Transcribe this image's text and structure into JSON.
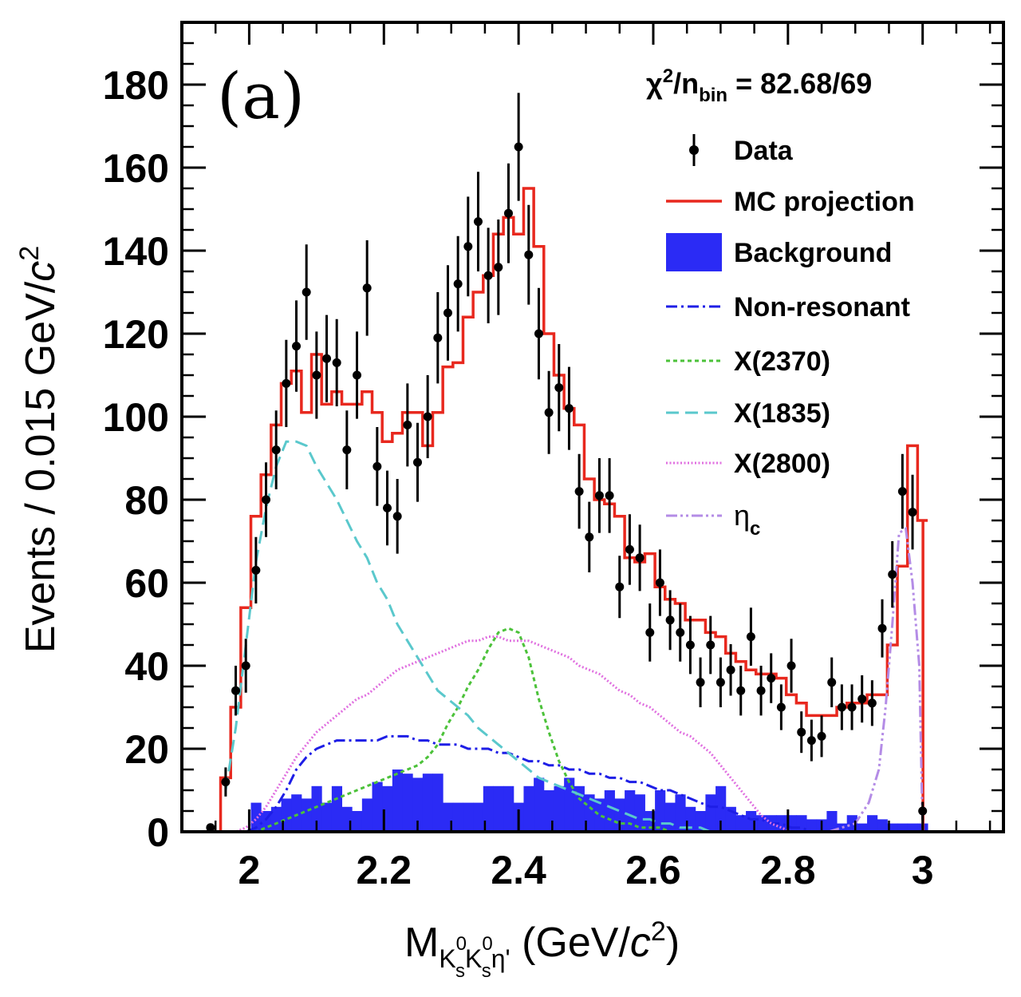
{
  "chart_data": {
    "type": "histogram",
    "panel_label": "(a)",
    "chi2": {
      "prefix": "χ",
      "sup": "2",
      "mid": "/n",
      "sub": "bin",
      "value": " = 82.68/69"
    },
    "xlabel": {
      "main": "M",
      "sub1": "K",
      "sup1": "0",
      "subsub1": "s",
      "sub2": "K",
      "sup2": "0",
      "subsub2": "s",
      "sub3": "η'",
      "unit": " (GeV/",
      "unit_italic": "c",
      "unit_sup": "2",
      "unit_close": ")"
    },
    "ylabel": {
      "main": "Events / 0.015 GeV/",
      "italic": "c",
      "sup": "2"
    },
    "xlim": [
      1.9,
      3.12
    ],
    "ylim": [
      0,
      195
    ],
    "xticks": [
      {
        "value": 2.0,
        "label": "2"
      },
      {
        "value": 2.2,
        "label": "2.2"
      },
      {
        "value": 2.4,
        "label": "2.4"
      },
      {
        "value": 2.6,
        "label": "2.6"
      },
      {
        "value": 2.8,
        "label": "2.8"
      },
      {
        "value": 3.0,
        "label": "3"
      }
    ],
    "yticks": [
      {
        "value": 0,
        "label": "0"
      },
      {
        "value": 20,
        "label": "20"
      },
      {
        "value": 40,
        "label": "40"
      },
      {
        "value": 60,
        "label": "60"
      },
      {
        "value": 80,
        "label": "80"
      },
      {
        "value": 100,
        "label": "100"
      },
      {
        "value": 120,
        "label": "120"
      },
      {
        "value": 140,
        "label": "140"
      },
      {
        "value": 160,
        "label": "160"
      },
      {
        "value": 180,
        "label": "180"
      }
    ],
    "bin_start": 1.9575,
    "bin_width": 0.015,
    "data": {
      "x": [
        1.9425,
        1.965,
        1.98,
        1.995,
        2.01,
        2.025,
        2.04,
        2.055,
        2.07,
        2.085,
        2.1,
        2.115,
        2.13,
        2.145,
        2.16,
        2.175,
        2.19,
        2.205,
        2.22,
        2.235,
        2.25,
        2.265,
        2.28,
        2.295,
        2.31,
        2.325,
        2.34,
        2.355,
        2.37,
        2.385,
        2.4,
        2.415,
        2.43,
        2.445,
        2.46,
        2.475,
        2.49,
        2.505,
        2.52,
        2.535,
        2.55,
        2.565,
        2.58,
        2.595,
        2.61,
        2.625,
        2.64,
        2.655,
        2.67,
        2.685,
        2.7,
        2.715,
        2.73,
        2.745,
        2.76,
        2.775,
        2.79,
        2.805,
        2.82,
        2.835,
        2.85,
        2.865,
        2.88,
        2.895,
        2.91,
        2.925,
        2.94,
        2.955,
        2.97,
        2.985,
        3.0
      ],
      "y": [
        1,
        12,
        34,
        40,
        63,
        80,
        92,
        108,
        117,
        130,
        110,
        114,
        113,
        92,
        110,
        131,
        88,
        78,
        76,
        98,
        89,
        100,
        119,
        125,
        132,
        141,
        147,
        134,
        136,
        149,
        165,
        139,
        120,
        101,
        107,
        102,
        82,
        71,
        81,
        81,
        59,
        68,
        66,
        48,
        60,
        51,
        48,
        45,
        36,
        45,
        36,
        39,
        34,
        47,
        34,
        37,
        30,
        40,
        24,
        22,
        23,
        36,
        30,
        30,
        32,
        31,
        49,
        62,
        82,
        77,
        5
      ],
      "err": [
        1,
        3.5,
        6,
        6.5,
        8,
        9,
        9.5,
        10.5,
        11,
        11.5,
        10.5,
        10.5,
        10.5,
        9.5,
        10.5,
        11.5,
        9.5,
        9,
        9,
        10,
        9.5,
        10,
        11,
        11.5,
        11.5,
        12,
        12,
        11.5,
        11.5,
        12,
        13,
        12,
        11,
        10,
        10.5,
        10,
        9,
        8.5,
        9,
        9,
        7.5,
        8.5,
        8,
        7,
        8,
        7.2,
        7,
        7,
        6,
        7,
        6,
        6.2,
        6,
        7,
        6,
        6,
        5.5,
        6.5,
        5,
        5,
        5,
        6,
        5.5,
        5.5,
        5.7,
        5.5,
        7,
        8,
        9,
        9,
        2.2
      ],
      "color": "#000000"
    },
    "series": [
      {
        "name": "MC projection",
        "style": "step",
        "color": "#e8281e",
        "values": [
          13,
          30,
          54,
          76,
          86,
          98,
          108,
          111,
          101,
          115,
          103,
          106,
          103,
          103,
          106,
          101,
          94,
          96,
          101,
          101,
          93,
          101,
          112,
          113,
          124,
          130,
          134,
          144,
          148,
          144,
          155,
          141,
          120,
          110,
          102,
          98,
          85,
          80,
          79,
          76,
          66,
          65,
          67,
          59,
          56,
          55,
          51,
          51,
          48,
          47,
          43,
          41,
          39,
          38,
          38,
          37,
          33,
          31,
          28,
          28,
          28,
          30,
          31,
          31,
          33,
          33,
          45,
          64,
          93,
          75
        ],
        "last_x": 3.0005
      },
      {
        "name": "Background",
        "style": "fill",
        "color": "#2b2bf5",
        "values": [
          0,
          0,
          0,
          7,
          5,
          6,
          8,
          9,
          8,
          11,
          7,
          11,
          6,
          5,
          8,
          12,
          11,
          15,
          14,
          13,
          14,
          14,
          7,
          7,
          7,
          7,
          11,
          11,
          11,
          7,
          11,
          13,
          10,
          11,
          13,
          11,
          9,
          8,
          10,
          8,
          10,
          9,
          5,
          10,
          7,
          9,
          6,
          5,
          9,
          11,
          6,
          4,
          5,
          4,
          4,
          4,
          4,
          4,
          3,
          3,
          5,
          2,
          4,
          2,
          4,
          3,
          2,
          2,
          2,
          2
        ]
      },
      {
        "name": "Non-resonant",
        "style": "dashdot",
        "color": "#1e1ee6",
        "values": [
          0,
          0,
          0,
          1,
          3,
          6,
          10,
          15,
          18,
          20,
          21,
          22,
          22,
          22,
          22,
          22,
          23,
          23,
          23,
          22,
          22,
          21,
          21,
          21,
          20,
          20,
          20,
          19,
          19,
          18,
          17,
          17,
          16,
          16,
          15,
          15,
          14,
          14,
          13,
          13,
          12,
          12,
          11,
          10,
          10,
          9,
          8,
          7,
          6,
          6,
          5,
          4,
          3,
          3,
          2,
          2,
          1,
          1,
          0,
          0
        ]
      },
      {
        "name": "X(2370)",
        "style": "dotted",
        "color": "#4cc23a",
        "values": [
          0,
          0,
          0,
          0,
          1,
          2,
          3,
          4,
          5,
          6,
          7,
          8,
          9,
          10,
          11,
          12,
          13,
          14,
          15,
          16,
          18,
          21,
          26,
          30,
          35,
          39,
          44,
          48,
          49,
          48,
          42,
          32,
          24,
          17,
          12,
          8,
          6,
          4,
          3,
          2,
          2,
          1,
          1,
          1,
          0,
          0
        ]
      },
      {
        "name": "X(1835)",
        "style": "dashed",
        "color": "#5ac8cc",
        "values": [
          10,
          25,
          45,
          65,
          78,
          88,
          94,
          94,
          93,
          88,
          84,
          80,
          75,
          70,
          66,
          60,
          56,
          50,
          46,
          42,
          38,
          34,
          32,
          30,
          28,
          25,
          23,
          21,
          19,
          17,
          15,
          13,
          12,
          11,
          10,
          9,
          8,
          7,
          6,
          5,
          4,
          3,
          3,
          2,
          2,
          1,
          1,
          1,
          0,
          0
        ]
      },
      {
        "name": "X(2800)",
        "style": "dotted-fine",
        "color": "#e070e0",
        "values": [
          0,
          0,
          1,
          3,
          6,
          10,
          14,
          18,
          21,
          24,
          26,
          28,
          30,
          32,
          33,
          35,
          37,
          39,
          40,
          41,
          42,
          43,
          44,
          45,
          46,
          46,
          47,
          47,
          46,
          46,
          46,
          45,
          44,
          43,
          42,
          40,
          39,
          38,
          36,
          34,
          33,
          31,
          30,
          28,
          26,
          24,
          23,
          21,
          19,
          16,
          13,
          10,
          7,
          4,
          2,
          1,
          0
        ]
      },
      {
        "name": "η",
        "name_sub": "c",
        "style": "dashdotdot",
        "color": "#b48ce6",
        "points": [
          [
            2.86,
            0
          ],
          [
            2.9,
            2
          ],
          [
            2.92,
            7
          ],
          [
            2.935,
            15
          ],
          [
            2.945,
            30
          ],
          [
            2.955,
            50
          ],
          [
            2.965,
            72
          ],
          [
            2.975,
            73
          ],
          [
            2.985,
            60
          ],
          [
            2.995,
            40
          ],
          [
            3.0,
            0
          ]
        ]
      }
    ],
    "legend": {
      "position": "top-right",
      "entries": [
        {
          "label": "Data",
          "kind": "marker",
          "color": "#000000"
        },
        {
          "label": "MC projection",
          "kind": "line-solid",
          "color": "#e8281e"
        },
        {
          "label": "Background",
          "kind": "box",
          "color": "#2b2bf5"
        },
        {
          "label": "Non-resonant",
          "kind": "line-dashdot",
          "color": "#1e1ee6"
        },
        {
          "label": "X(2370)",
          "kind": "line-dotted",
          "color": "#4cc23a"
        },
        {
          "label": "X(1835)",
          "kind": "line-dashed",
          "color": "#5ac8cc"
        },
        {
          "label": "X(2800)",
          "kind": "line-dotted-fine",
          "color": "#e070e0"
        },
        {
          "label": "η",
          "label_sub": "c",
          "kind": "line-dashdotdot",
          "color": "#b48ce6"
        }
      ]
    }
  }
}
